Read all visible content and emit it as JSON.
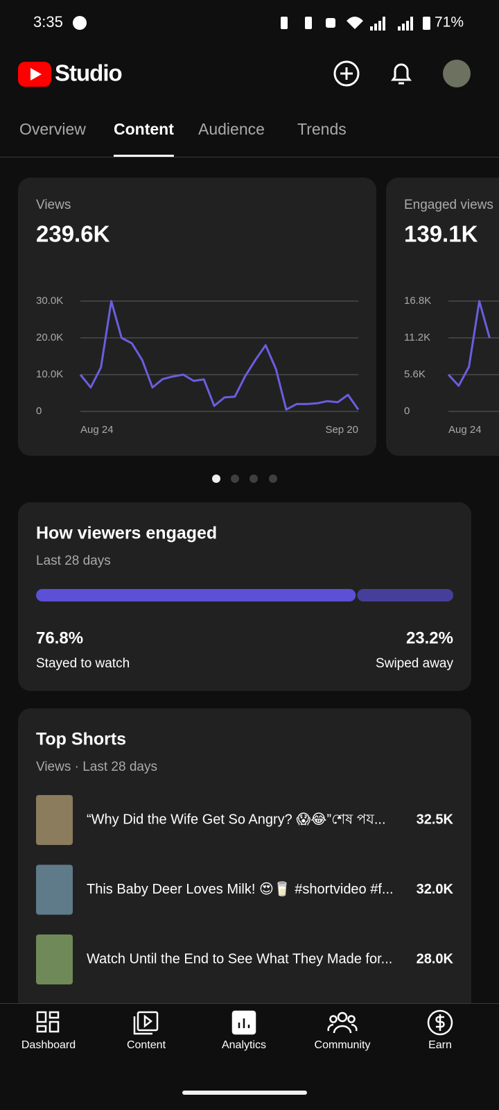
{
  "status_bar": {
    "time": "3:35",
    "battery": "71%"
  },
  "header": {
    "app_name": "Studio"
  },
  "tabs": [
    "Overview",
    "Content",
    "Audience",
    "Trends"
  ],
  "metric_cards": [
    {
      "type": "line",
      "title": "Views",
      "total": "239.6K",
      "color": "#6a5ee0",
      "categories": [
        "Aug 24",
        null,
        null,
        null,
        null,
        null,
        null,
        null,
        null,
        null,
        null,
        null,
        null,
        null,
        null,
        null,
        null,
        null,
        null,
        null,
        null,
        null,
        null,
        null,
        null,
        null,
        null,
        "Sep 20"
      ],
      "values": [
        10000,
        6500,
        12000,
        30000,
        20000,
        18500,
        14000,
        6500,
        8800,
        9500,
        10000,
        8300,
        8700,
        1500,
        3800,
        4000,
        9500,
        14000,
        18000,
        11500,
        500,
        2000,
        2000,
        2200,
        2800,
        2500,
        4500,
        500
      ],
      "ylim": [
        0,
        30000
      ],
      "yticks": [
        {
          "value": 0,
          "label": "0"
        },
        {
          "value": 10000,
          "label": "10.0K"
        },
        {
          "value": 20000,
          "label": "20.0K"
        },
        {
          "value": 30000,
          "label": "30.0K"
        }
      ],
      "grid": true
    },
    {
      "type": "line",
      "title": "Engaged views",
      "total": "139.1K",
      "color": "#6a5ee0",
      "categories": [
        "Aug 24",
        null,
        null,
        null,
        null
      ],
      "values": [
        5600,
        3900,
        6800,
        16800,
        11200
      ],
      "ylim": [
        0,
        16800
      ],
      "yticks": [
        {
          "value": 0,
          "label": "0"
        },
        {
          "value": 5600,
          "label": "5.6K"
        },
        {
          "value": 11200,
          "label": "11.2K"
        },
        {
          "value": 16800,
          "label": "16.8K"
        }
      ],
      "grid": true
    }
  ],
  "engagement": {
    "title": "How viewers engaged",
    "subtitle": "Last 28 days",
    "values": [
      76.8,
      23.2
    ],
    "value_labels": [
      "76.8%",
      "23.2%"
    ],
    "labels": [
      "Stayed to watch",
      "Swiped away"
    ],
    "colors": [
      "#5b50d6",
      "#463f99"
    ]
  },
  "top_shorts": {
    "title": "Top Shorts",
    "subtitle": "Views · Last 28 days",
    "items": [
      {
        "title": "“Why Did the Wife Get So Angry? 😱😂”শেষ পয...",
        "views": "32.5K"
      },
      {
        "title": "This Baby Deer Loves Milk! 😍🥛 #shortvideo #f...",
        "views": "32.0K"
      },
      {
        "title": "Watch Until the End to See What They Made for...",
        "views": "28.0K"
      }
    ]
  },
  "bottom_nav": [
    "Dashboard",
    "Content",
    "Analytics",
    "Community",
    "Earn"
  ]
}
